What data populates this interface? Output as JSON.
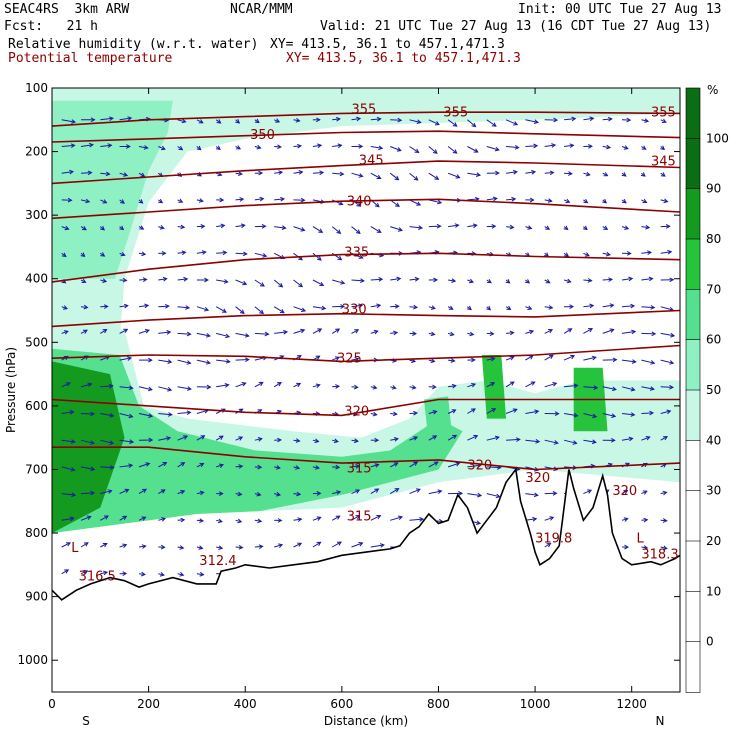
{
  "header": {
    "model": "SEAC4RS  3km ARW",
    "org": "NCAR/MMM",
    "init": "Init: 00 UTC Tue 27 Aug 13",
    "fcst": "Fcst:   21 h",
    "valid": "Valid: 21 UTC Tue 27 Aug 13 (16 CDT Tue 27 Aug 13)",
    "field1": "Relative humidity (w.r.t. water)",
    "xy1": "XY= 413.5, 36.1 to 457.1,471.3",
    "field2": "Potential temperature",
    "xy2": "XY= 413.5, 36.1 to 457.1,471.3"
  },
  "colors": {
    "contour": "#8b0000",
    "vectors": "#1a1aa0",
    "rh_bins": [
      "#ffffff",
      "#ffffff",
      "#ffffff",
      "#ffffff",
      "#ffffff",
      "#c9f7e6",
      "#8ff0c4",
      "#55e08f",
      "#26c33d",
      "#149a1f",
      "#0b6e14"
    ]
  },
  "chart_data": {
    "type": "heatmap",
    "title": "Relative humidity (w.r.t. water)",
    "xlabel": "Distance (km)",
    "ylabel": "Pressure (hPa)",
    "xlim": [
      0,
      1300
    ],
    "ylim": [
      1050,
      100
    ],
    "x_ticks": [
      0,
      200,
      400,
      600,
      800,
      1000,
      1200
    ],
    "y_ticks": [
      100,
      200,
      300,
      400,
      500,
      600,
      700,
      800,
      900,
      1000
    ],
    "x_end_labels": {
      "left": "S",
      "right": "N"
    },
    "colorbar": {
      "unit": "%",
      "ticks": [
        0,
        10,
        20,
        30,
        40,
        50,
        60,
        70,
        80,
        90,
        100
      ]
    },
    "theta_contours": [
      {
        "value": 355,
        "points": [
          [
            0,
            160
          ],
          [
            200,
            150
          ],
          [
            400,
            145
          ],
          [
            600,
            140
          ],
          [
            800,
            138
          ],
          [
            1000,
            138
          ],
          [
            1300,
            140
          ]
        ]
      },
      {
        "value": 350,
        "points": [
          [
            0,
            185
          ],
          [
            200,
            180
          ],
          [
            400,
            175
          ],
          [
            600,
            170
          ],
          [
            800,
            168
          ],
          [
            1000,
            172
          ],
          [
            1300,
            178
          ]
        ]
      },
      {
        "value": 345,
        "points": [
          [
            0,
            250
          ],
          [
            200,
            240
          ],
          [
            400,
            230
          ],
          [
            600,
            222
          ],
          [
            800,
            215
          ],
          [
            1000,
            218
          ],
          [
            1300,
            225
          ]
        ]
      },
      {
        "value": 340,
        "points": [
          [
            0,
            305
          ],
          [
            200,
            295
          ],
          [
            400,
            285
          ],
          [
            600,
            278
          ],
          [
            800,
            275
          ],
          [
            1000,
            282
          ],
          [
            1300,
            295
          ]
        ]
      },
      {
        "value": 335,
        "points": [
          [
            0,
            405
          ],
          [
            200,
            385
          ],
          [
            400,
            370
          ],
          [
            600,
            362
          ],
          [
            800,
            360
          ],
          [
            1000,
            365
          ],
          [
            1300,
            370
          ]
        ]
      },
      {
        "value": 330,
        "points": [
          [
            0,
            475
          ],
          [
            200,
            465
          ],
          [
            400,
            458
          ],
          [
            600,
            455
          ],
          [
            800,
            458
          ],
          [
            1000,
            460
          ],
          [
            1300,
            450
          ]
        ]
      },
      {
        "value": 325,
        "points": [
          [
            0,
            525
          ],
          [
            200,
            520
          ],
          [
            400,
            522
          ],
          [
            600,
            530
          ],
          [
            800,
            525
          ],
          [
            1000,
            520
          ],
          [
            1300,
            505
          ]
        ]
      },
      {
        "value": 320,
        "points": [
          [
            0,
            590
          ],
          [
            200,
            600
          ],
          [
            400,
            610
          ],
          [
            600,
            615
          ],
          [
            800,
            590
          ],
          [
            1000,
            590
          ],
          [
            1300,
            590
          ]
        ]
      },
      {
        "value": 315,
        "points": [
          [
            0,
            665
          ],
          [
            200,
            665
          ],
          [
            400,
            680
          ],
          [
            600,
            690
          ],
          [
            800,
            685
          ],
          [
            1000,
            700
          ],
          [
            1300,
            690
          ]
        ]
      }
    ],
    "contour_labels": [
      {
        "text": "355",
        "x": 620,
        "p": 140
      },
      {
        "text": "355",
        "x": 810,
        "p": 145
      },
      {
        "text": "355",
        "x": 1240,
        "p": 145
      },
      {
        "text": "350",
        "x": 410,
        "p": 180
      },
      {
        "text": "345",
        "x": 635,
        "p": 220
      },
      {
        "text": "345",
        "x": 1240,
        "p": 222
      },
      {
        "text": "340",
        "x": 610,
        "p": 285
      },
      {
        "text": "335",
        "x": 605,
        "p": 365
      },
      {
        "text": "330",
        "x": 600,
        "p": 455
      },
      {
        "text": "325",
        "x": 590,
        "p": 532
      },
      {
        "text": "320",
        "x": 605,
        "p": 615
      },
      {
        "text": "320",
        "x": 860,
        "p": 700
      },
      {
        "text": "320",
        "x": 980,
        "p": 720
      },
      {
        "text": "320",
        "x": 1160,
        "p": 740
      },
      {
        "text": "315",
        "x": 610,
        "p": 705
      },
      {
        "text": "315",
        "x": 610,
        "p": 780
      }
    ],
    "low_markers": [
      {
        "text": "L",
        "x": 40,
        "p": 830
      },
      {
        "text": "316.5",
        "x": 55,
        "p": 875
      },
      {
        "text": "312.4",
        "x": 305,
        "p": 850
      },
      {
        "text": "319.8",
        "x": 1000,
        "p": 815
      },
      {
        "text": "L",
        "x": 1210,
        "p": 815
      },
      {
        "text": "318.3",
        "x": 1220,
        "p": 840
      }
    ],
    "terrain_pressure": [
      [
        0,
        890
      ],
      [
        20,
        905
      ],
      [
        50,
        890
      ],
      [
        80,
        880
      ],
      [
        120,
        870
      ],
      [
        150,
        875
      ],
      [
        180,
        885
      ],
      [
        200,
        880
      ],
      [
        250,
        870
      ],
      [
        300,
        880
      ],
      [
        340,
        880
      ],
      [
        350,
        860
      ],
      [
        380,
        855
      ],
      [
        400,
        850
      ],
      [
        450,
        855
      ],
      [
        500,
        850
      ],
      [
        550,
        845
      ],
      [
        600,
        835
      ],
      [
        650,
        830
      ],
      [
        700,
        825
      ],
      [
        720,
        820
      ],
      [
        740,
        800
      ],
      [
        760,
        790
      ],
      [
        780,
        770
      ],
      [
        800,
        785
      ],
      [
        820,
        780
      ],
      [
        840,
        740
      ],
      [
        860,
        760
      ],
      [
        880,
        800
      ],
      [
        900,
        780
      ],
      [
        920,
        760
      ],
      [
        940,
        720
      ],
      [
        960,
        700
      ],
      [
        970,
        750
      ],
      [
        990,
        800
      ],
      [
        1000,
        830
      ],
      [
        1010,
        850
      ],
      [
        1030,
        840
      ],
      [
        1050,
        820
      ],
      [
        1070,
        700
      ],
      [
        1080,
        730
      ],
      [
        1100,
        780
      ],
      [
        1120,
        760
      ],
      [
        1140,
        710
      ],
      [
        1150,
        740
      ],
      [
        1160,
        800
      ],
      [
        1180,
        840
      ],
      [
        1200,
        850
      ],
      [
        1240,
        845
      ],
      [
        1260,
        850
      ],
      [
        1290,
        840
      ],
      [
        1300,
        835
      ]
    ],
    "rh_regions": [
      {
        "rh": 50,
        "points": [
          [
            0,
            100
          ],
          [
            1300,
            100
          ],
          [
            1300,
            140
          ],
          [
            1000,
            150
          ],
          [
            600,
            160
          ],
          [
            400,
            180
          ],
          [
            280,
            200
          ],
          [
            200,
            280
          ],
          [
            150,
            400
          ],
          [
            140,
            500
          ],
          [
            0,
            500
          ]
        ]
      },
      {
        "rh": 35,
        "points": [
          [
            1280,
            160
          ],
          [
            1300,
            160
          ],
          [
            1300,
            260
          ],
          [
            1230,
            255
          ],
          [
            1240,
            200
          ]
        ]
      },
      {
        "rh": 60,
        "points": [
          [
            0,
            120
          ],
          [
            250,
            120
          ],
          [
            240,
            170
          ],
          [
            200,
            230
          ],
          [
            160,
            330
          ],
          [
            130,
            400
          ],
          [
            0,
            400
          ]
        ]
      },
      {
        "rh": 55,
        "points": [
          [
            0,
            480
          ],
          [
            150,
            480
          ],
          [
            190,
            600
          ],
          [
            280,
            620
          ],
          [
            500,
            640
          ],
          [
            640,
            650
          ],
          [
            740,
            620
          ],
          [
            800,
            570
          ],
          [
            900,
            560
          ],
          [
            1000,
            580
          ],
          [
            1100,
            560
          ],
          [
            1300,
            560
          ],
          [
            1300,
            850
          ],
          [
            0,
            900
          ]
        ]
      },
      {
        "rh": 70,
        "points": [
          [
            0,
            510
          ],
          [
            140,
            520
          ],
          [
            180,
            600
          ],
          [
            260,
            640
          ],
          [
            420,
            670
          ],
          [
            600,
            680
          ],
          [
            700,
            670
          ],
          [
            800,
            620
          ],
          [
            850,
            640
          ],
          [
            800,
            700
          ],
          [
            600,
            740
          ],
          [
            400,
            770
          ],
          [
            250,
            800
          ],
          [
            120,
            860
          ],
          [
            0,
            880
          ]
        ]
      },
      {
        "rh": 90,
        "points": [
          [
            0,
            530
          ],
          [
            120,
            550
          ],
          [
            150,
            650
          ],
          [
            100,
            760
          ],
          [
            0,
            800
          ]
        ]
      },
      {
        "rh": 85,
        "points": [
          [
            890,
            520
          ],
          [
            930,
            520
          ],
          [
            940,
            620
          ],
          [
            900,
            620
          ]
        ]
      },
      {
        "rh": 85,
        "points": [
          [
            1080,
            540
          ],
          [
            1140,
            540
          ],
          [
            1150,
            640
          ],
          [
            1080,
            640
          ]
        ]
      },
      {
        "rh": 75,
        "points": [
          [
            770,
            590
          ],
          [
            820,
            585
          ],
          [
            830,
            660
          ],
          [
            780,
            660
          ]
        ]
      },
      {
        "rh": 35,
        "points": [
          [
            0,
            800
          ],
          [
            300,
            770
          ],
          [
            600,
            760
          ],
          [
            800,
            720
          ],
          [
            1000,
            700
          ],
          [
            1300,
            720
          ],
          [
            1300,
            850
          ],
          [
            0,
            900
          ]
        ]
      }
    ],
    "wind_vectors_note": ""
  }
}
